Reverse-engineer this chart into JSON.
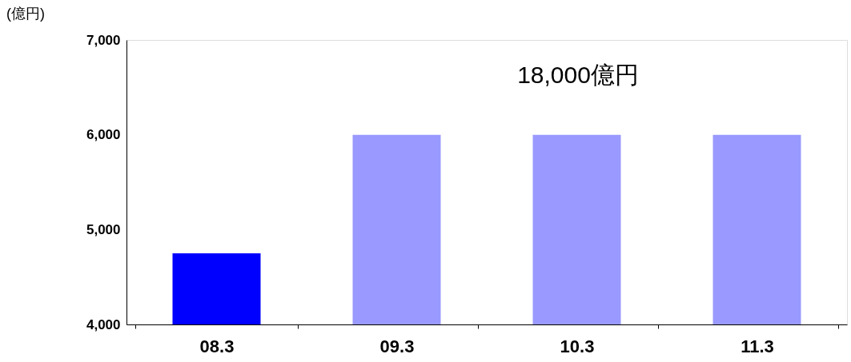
{
  "chart_data": {
    "type": "bar",
    "ylabel": "(億円)",
    "categories": [
      "08.3",
      "09.3",
      "10.3",
      "11.3"
    ],
    "values": [
      4750,
      6000,
      6000,
      6000
    ],
    "colors": [
      "#0000ff",
      "#9999ff",
      "#9999ff",
      "#9999ff"
    ],
    "ylim": [
      4000,
      7000
    ],
    "yticks": [
      {
        "value": 4000,
        "label": "4,000"
      },
      {
        "value": 5000,
        "label": "5,000"
      },
      {
        "value": 6000,
        "label": "6,000"
      },
      {
        "value": 7000,
        "label": "7,000"
      }
    ],
    "annotations": [
      "18,000億円"
    ],
    "grid": false
  }
}
